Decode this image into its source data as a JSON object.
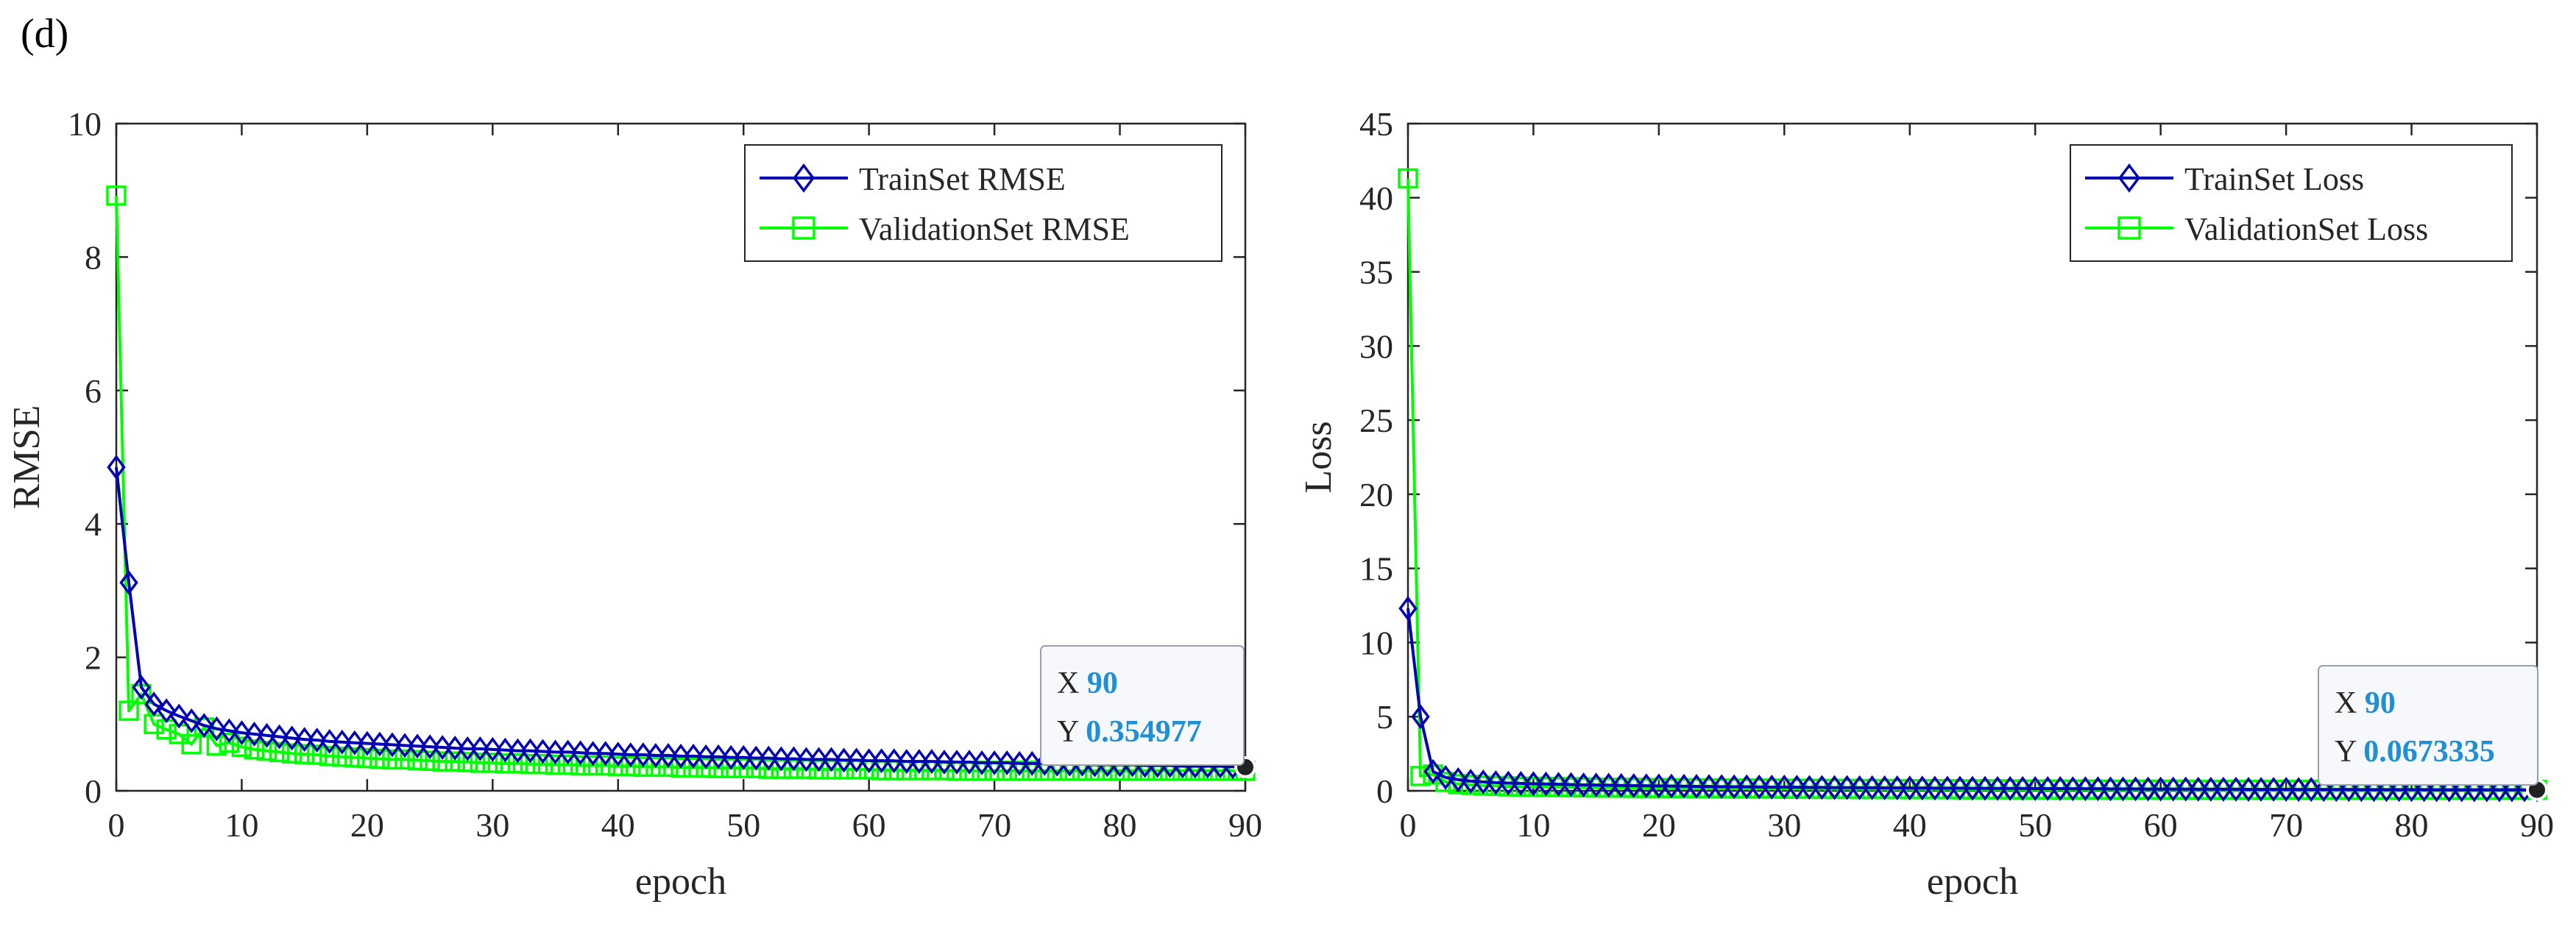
{
  "panel_label": "(d)",
  "chart_data": [
    {
      "type": "line",
      "xlabel": "epoch",
      "ylabel": "RMSE",
      "xlim": [
        0,
        90
      ],
      "ylim": [
        0,
        10
      ],
      "xticks": [
        0,
        10,
        20,
        30,
        40,
        50,
        60,
        70,
        80,
        90
      ],
      "yticks": [
        0,
        2,
        4,
        6,
        8,
        10
      ],
      "grid": false,
      "legend_position": "top-right",
      "x_start": 0,
      "series": [
        {
          "name": "TrainSet RMSE",
          "color": "#0000b4",
          "marker": "diamond",
          "values": [
            4.85,
            3.12,
            1.55,
            1.3,
            1.2,
            1.12,
            1.05,
            0.98,
            0.93,
            0.9,
            0.87,
            0.85,
            0.83,
            0.81,
            0.79,
            0.77,
            0.76,
            0.74,
            0.73,
            0.72,
            0.71,
            0.7,
            0.69,
            0.68,
            0.67,
            0.66,
            0.65,
            0.64,
            0.63,
            0.63,
            0.62,
            0.61,
            0.6,
            0.6,
            0.59,
            0.58,
            0.58,
            0.57,
            0.56,
            0.56,
            0.55,
            0.54,
            0.54,
            0.53,
            0.53,
            0.52,
            0.52,
            0.51,
            0.51,
            0.5,
            0.5,
            0.49,
            0.49,
            0.48,
            0.48,
            0.47,
            0.47,
            0.47,
            0.46,
            0.46,
            0.45,
            0.45,
            0.45,
            0.44,
            0.44,
            0.44,
            0.43,
            0.43,
            0.43,
            0.42,
            0.42,
            0.42,
            0.41,
            0.41,
            0.41,
            0.4,
            0.4,
            0.4,
            0.39,
            0.39,
            0.39,
            0.39,
            0.38,
            0.38,
            0.38,
            0.37,
            0.37,
            0.37,
            0.37,
            0.36,
            0.36
          ]
        },
        {
          "name": "ValidationSet RMSE",
          "color": "#00ff00",
          "marker": "square",
          "values": [
            8.92,
            1.2,
            1.45,
            1.0,
            0.92,
            0.85,
            0.7,
            0.95,
            0.68,
            0.72,
            0.66,
            0.62,
            0.6,
            0.58,
            0.56,
            0.55,
            0.54,
            0.52,
            0.51,
            0.5,
            0.49,
            0.48,
            0.47,
            0.47,
            0.46,
            0.45,
            0.44,
            0.44,
            0.43,
            0.42,
            0.42,
            0.41,
            0.41,
            0.4,
            0.4,
            0.39,
            0.39,
            0.38,
            0.38,
            0.38,
            0.37,
            0.37,
            0.36,
            0.36,
            0.36,
            0.35,
            0.35,
            0.35,
            0.34,
            0.34,
            0.34,
            0.34,
            0.33,
            0.33,
            0.33,
            0.33,
            0.32,
            0.32,
            0.32,
            0.32,
            0.32,
            0.31,
            0.31,
            0.31,
            0.31,
            0.31,
            0.31,
            0.3,
            0.3,
            0.3,
            0.3,
            0.3,
            0.3,
            0.3,
            0.3,
            0.3,
            0.3,
            0.3,
            0.3,
            0.3,
            0.3,
            0.3,
            0.3,
            0.3,
            0.3,
            0.3,
            0.3,
            0.3,
            0.3,
            0.3,
            0.3
          ]
        }
      ],
      "datatip": {
        "x_label": "X",
        "x_value": "90",
        "y_label": "Y",
        "y_value": "0.354977",
        "x": 90,
        "y": 0.354977
      }
    },
    {
      "type": "line",
      "xlabel": "epoch",
      "ylabel": "Loss",
      "xlim": [
        0,
        90
      ],
      "ylim": [
        0,
        45
      ],
      "xticks": [
        0,
        10,
        20,
        30,
        40,
        50,
        60,
        70,
        80,
        90
      ],
      "yticks": [
        0,
        5,
        10,
        15,
        20,
        25,
        30,
        35,
        40,
        45
      ],
      "grid": false,
      "legend_position": "top-right",
      "x_start": 0,
      "series": [
        {
          "name": "TrainSet Loss",
          "color": "#0000b4",
          "marker": "diamond",
          "values": [
            12.3,
            5.0,
            1.3,
            0.9,
            0.75,
            0.65,
            0.6,
            0.55,
            0.52,
            0.5,
            0.48,
            0.46,
            0.44,
            0.42,
            0.4,
            0.39,
            0.38,
            0.36,
            0.35,
            0.34,
            0.33,
            0.32,
            0.31,
            0.3,
            0.29,
            0.28,
            0.27,
            0.27,
            0.26,
            0.25,
            0.25,
            0.24,
            0.23,
            0.23,
            0.22,
            0.22,
            0.21,
            0.21,
            0.2,
            0.2,
            0.19,
            0.19,
            0.18,
            0.18,
            0.18,
            0.17,
            0.17,
            0.16,
            0.16,
            0.16,
            0.15,
            0.15,
            0.15,
            0.14,
            0.14,
            0.14,
            0.13,
            0.13,
            0.13,
            0.12,
            0.12,
            0.12,
            0.12,
            0.11,
            0.11,
            0.11,
            0.11,
            0.1,
            0.1,
            0.1,
            0.1,
            0.09,
            0.09,
            0.09,
            0.09,
            0.09,
            0.08,
            0.08,
            0.08,
            0.08,
            0.08,
            0.08,
            0.07,
            0.07,
            0.07,
            0.07,
            0.07,
            0.07,
            0.07,
            0.07,
            0.07
          ]
        },
        {
          "name": "ValidationSet Loss",
          "color": "#00ff00",
          "marker": "square",
          "values": [
            41.3,
            1.0,
            1.1,
            0.6,
            0.45,
            0.4,
            0.35,
            0.33,
            0.3,
            0.28,
            0.27,
            0.26,
            0.25,
            0.24,
            0.23,
            0.22,
            0.21,
            0.21,
            0.2,
            0.19,
            0.19,
            0.18,
            0.18,
            0.17,
            0.17,
            0.16,
            0.16,
            0.15,
            0.15,
            0.15,
            0.14,
            0.14,
            0.14,
            0.13,
            0.13,
            0.13,
            0.12,
            0.12,
            0.12,
            0.12,
            0.11,
            0.11,
            0.11,
            0.11,
            0.1,
            0.1,
            0.1,
            0.1,
            0.1,
            0.09,
            0.09,
            0.09,
            0.09,
            0.09,
            0.09,
            0.08,
            0.08,
            0.08,
            0.08,
            0.08,
            0.08,
            0.08,
            0.08,
            0.07,
            0.07,
            0.07,
            0.07,
            0.07,
            0.07,
            0.07,
            0.07,
            0.07,
            0.07,
            0.07,
            0.07,
            0.07,
            0.07,
            0.07,
            0.07,
            0.07,
            0.07,
            0.07,
            0.07,
            0.07,
            0.07,
            0.07,
            0.07,
            0.07,
            0.07,
            0.07,
            0.07
          ]
        }
      ],
      "datatip": {
        "x_label": "X",
        "x_value": "90",
        "y_label": "Y",
        "y_value": "0.0673335",
        "x": 90,
        "y": 0.0673335
      }
    }
  ]
}
